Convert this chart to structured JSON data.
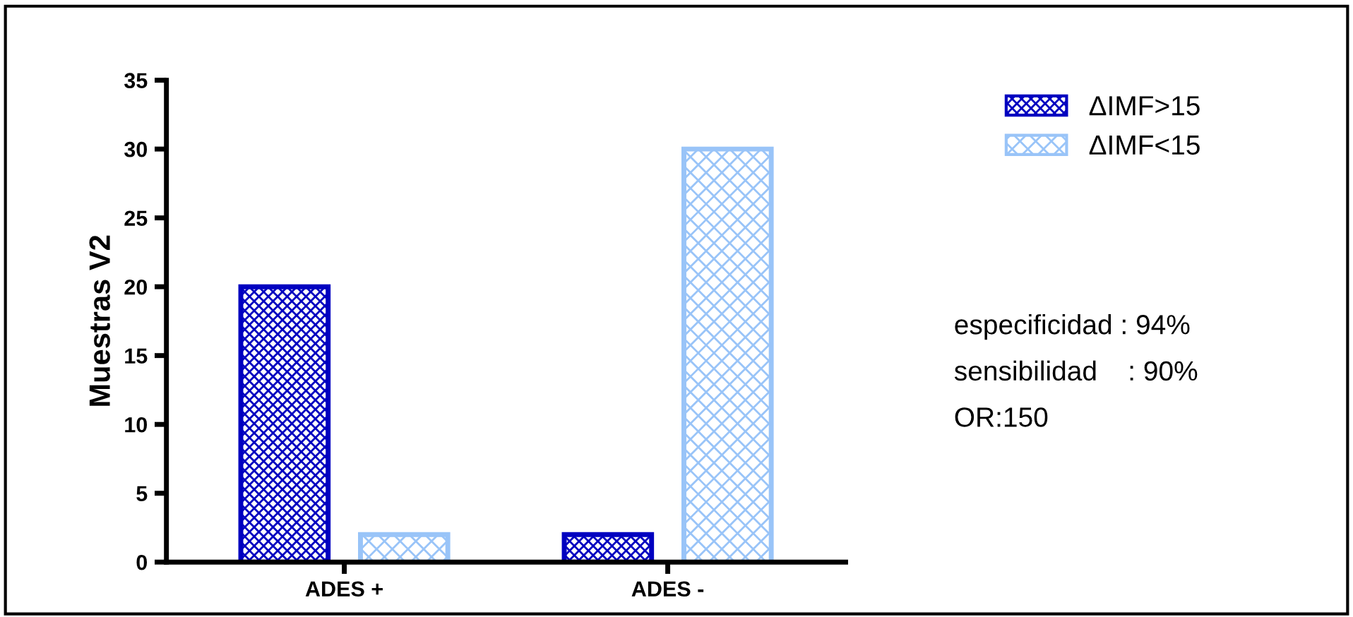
{
  "chart_data": {
    "type": "bar",
    "ylabel": "Muestras V2",
    "categories": [
      "ADES +",
      "ADES -"
    ],
    "series": [
      {
        "name": "ΔIMF>15",
        "color": "#0000c0",
        "values": [
          20,
          2
        ]
      },
      {
        "name": "ΔIMF<15",
        "color": "#99c4f8",
        "values": [
          2,
          30
        ]
      }
    ],
    "ylim": [
      0,
      35
    ],
    "yticks": [
      0,
      5,
      10,
      15,
      20,
      25,
      30,
      35
    ],
    "grid": false,
    "legend": "top right",
    "annotations": [
      "especificidad : 94%",
      "sensibilidad    : 90%",
      "OR:150"
    ]
  }
}
